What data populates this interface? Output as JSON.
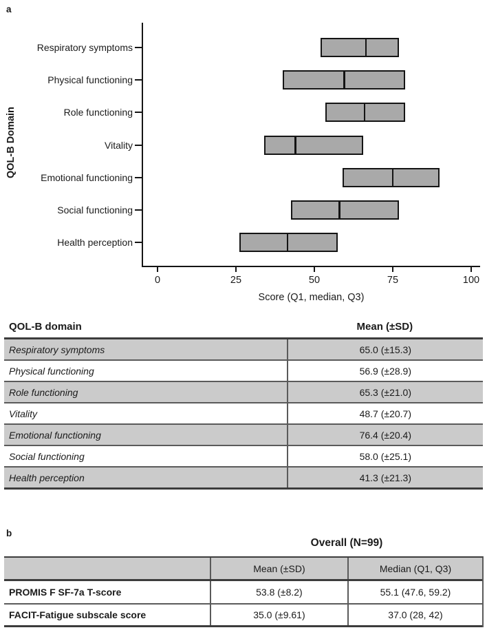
{
  "panel_a": {
    "label": "a"
  },
  "panel_b": {
    "label": "b",
    "title": "Overall (N=99)",
    "table": {
      "header": [
        "",
        "Mean (±SD)",
        "Median (Q1, Q3)"
      ],
      "rows": [
        {
          "name": "PROMIS F SF-7a T-score",
          "mean": "53.8 (±8.2)",
          "median": "55.1 (47.6, 59.2)"
        },
        {
          "name": "FACIT-Fatigue subscale score",
          "mean": "35.0 (±9.61)",
          "median": "37.0 (28, 42)"
        }
      ]
    }
  },
  "chart_data": {
    "type": "box",
    "orientation": "horizontal",
    "title": "",
    "xlabel": "Score (Q1, median, Q3)",
    "ylabel": "QOL-B Domain",
    "x_ticks": [
      0,
      25,
      50,
      75,
      100
    ],
    "xlim": [
      -5,
      103
    ],
    "grid": false,
    "categories": [
      "Respiratory symptoms",
      "Physical functioning",
      "Role functioning",
      "Vitality",
      "Emotional functioning",
      "Social functioning",
      "Health perception"
    ],
    "boxes": [
      {
        "q1": 52,
        "median": 66.5,
        "q3": 77
      },
      {
        "q1": 40,
        "median": 59.5,
        "q3": 79
      },
      {
        "q1": 53.5,
        "median": 66,
        "q3": 79
      },
      {
        "q1": 34,
        "median": 44,
        "q3": 65.5
      },
      {
        "q1": 59,
        "median": 75,
        "q3": 90
      },
      {
        "q1": 42.5,
        "median": 58,
        "q3": 77
      },
      {
        "q1": 26,
        "median": 41.5,
        "q3": 57.5
      }
    ]
  },
  "table1": {
    "header": {
      "domain": "QOL-B domain",
      "mean": "Mean (±SD)"
    },
    "rows": [
      {
        "domain": "Respiratory symptoms",
        "mean": "65.0 (±15.3)"
      },
      {
        "domain": "Physical functioning",
        "mean": "56.9 (±28.9)"
      },
      {
        "domain": "Role functioning",
        "mean": "65.3 (±21.0)"
      },
      {
        "domain": "Vitality",
        "mean": "48.7 (±20.7)"
      },
      {
        "domain": "Emotional functioning",
        "mean": "76.4 (±20.4)"
      },
      {
        "domain": "Social functioning",
        "mean": "58.0 (±25.1)"
      },
      {
        "domain": "Health perception",
        "mean": "41.3 (±21.3)"
      }
    ]
  },
  "colors": {
    "box_fill": "#a9a9a9",
    "box_border": "#141414",
    "table_row_gray": "#cbcbcb",
    "table_line_mid": "#5a5a5a",
    "table_line_thick": "#3c3c3c"
  }
}
